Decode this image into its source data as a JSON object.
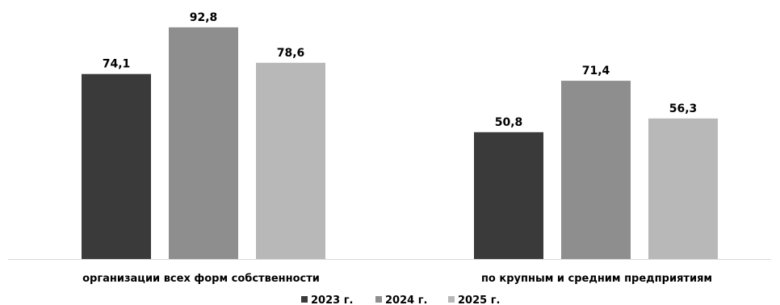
{
  "chart_data": {
    "type": "bar",
    "categories": [
      "организации всех форм собственности",
      "по крупным и средним предприятиям"
    ],
    "series": [
      {
        "name": "2023 г.",
        "values": [
          74.1,
          50.8
        ],
        "color": "#3a3a3a"
      },
      {
        "name": "2024 г.",
        "values": [
          92.8,
          71.4
        ],
        "color": "#8e8e8e"
      },
      {
        "name": "2025 г.",
        "values": [
          78.6,
          56.3
        ],
        "color": "#b8b8b8"
      }
    ],
    "value_labels": [
      [
        "74,1",
        "50,8"
      ],
      [
        "92,8",
        "71,4"
      ],
      [
        "78,6",
        "56,3"
      ]
    ],
    "title": "",
    "xlabel": "",
    "ylabel": "",
    "ylim": [
      0,
      100
    ],
    "grid": false,
    "legend_position": "bottom-center",
    "baseline_color": "#d9d9d9"
  }
}
